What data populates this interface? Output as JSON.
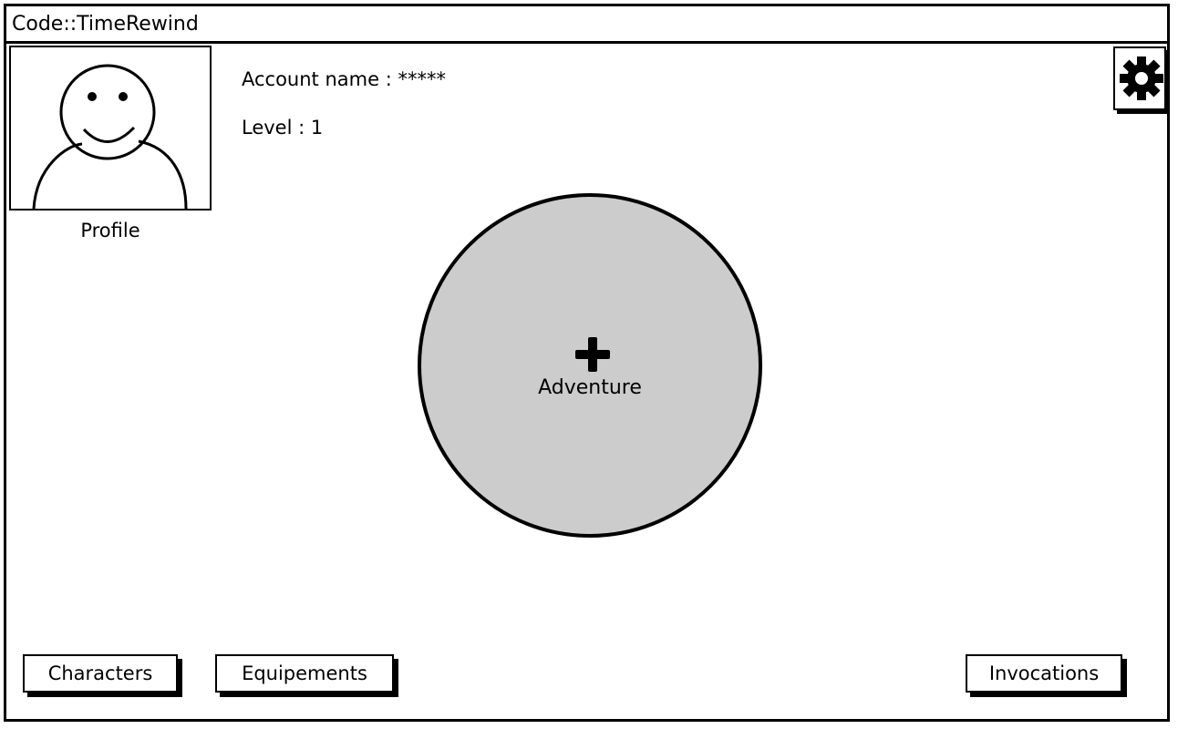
{
  "window": {
    "title": "Code::TimeRewind"
  },
  "profile": {
    "label": "Profile",
    "account_line": "Account name : *****",
    "level_line": "Level : 1"
  },
  "settings": {
    "icon": "gear-icon"
  },
  "adventure": {
    "label": "Adventure",
    "icon": "plus-icon",
    "fill_color": "#cccccc"
  },
  "bottom_nav": {
    "characters_label": "Characters",
    "equipements_label": "Equipements",
    "invocations_label": "Invocations"
  }
}
